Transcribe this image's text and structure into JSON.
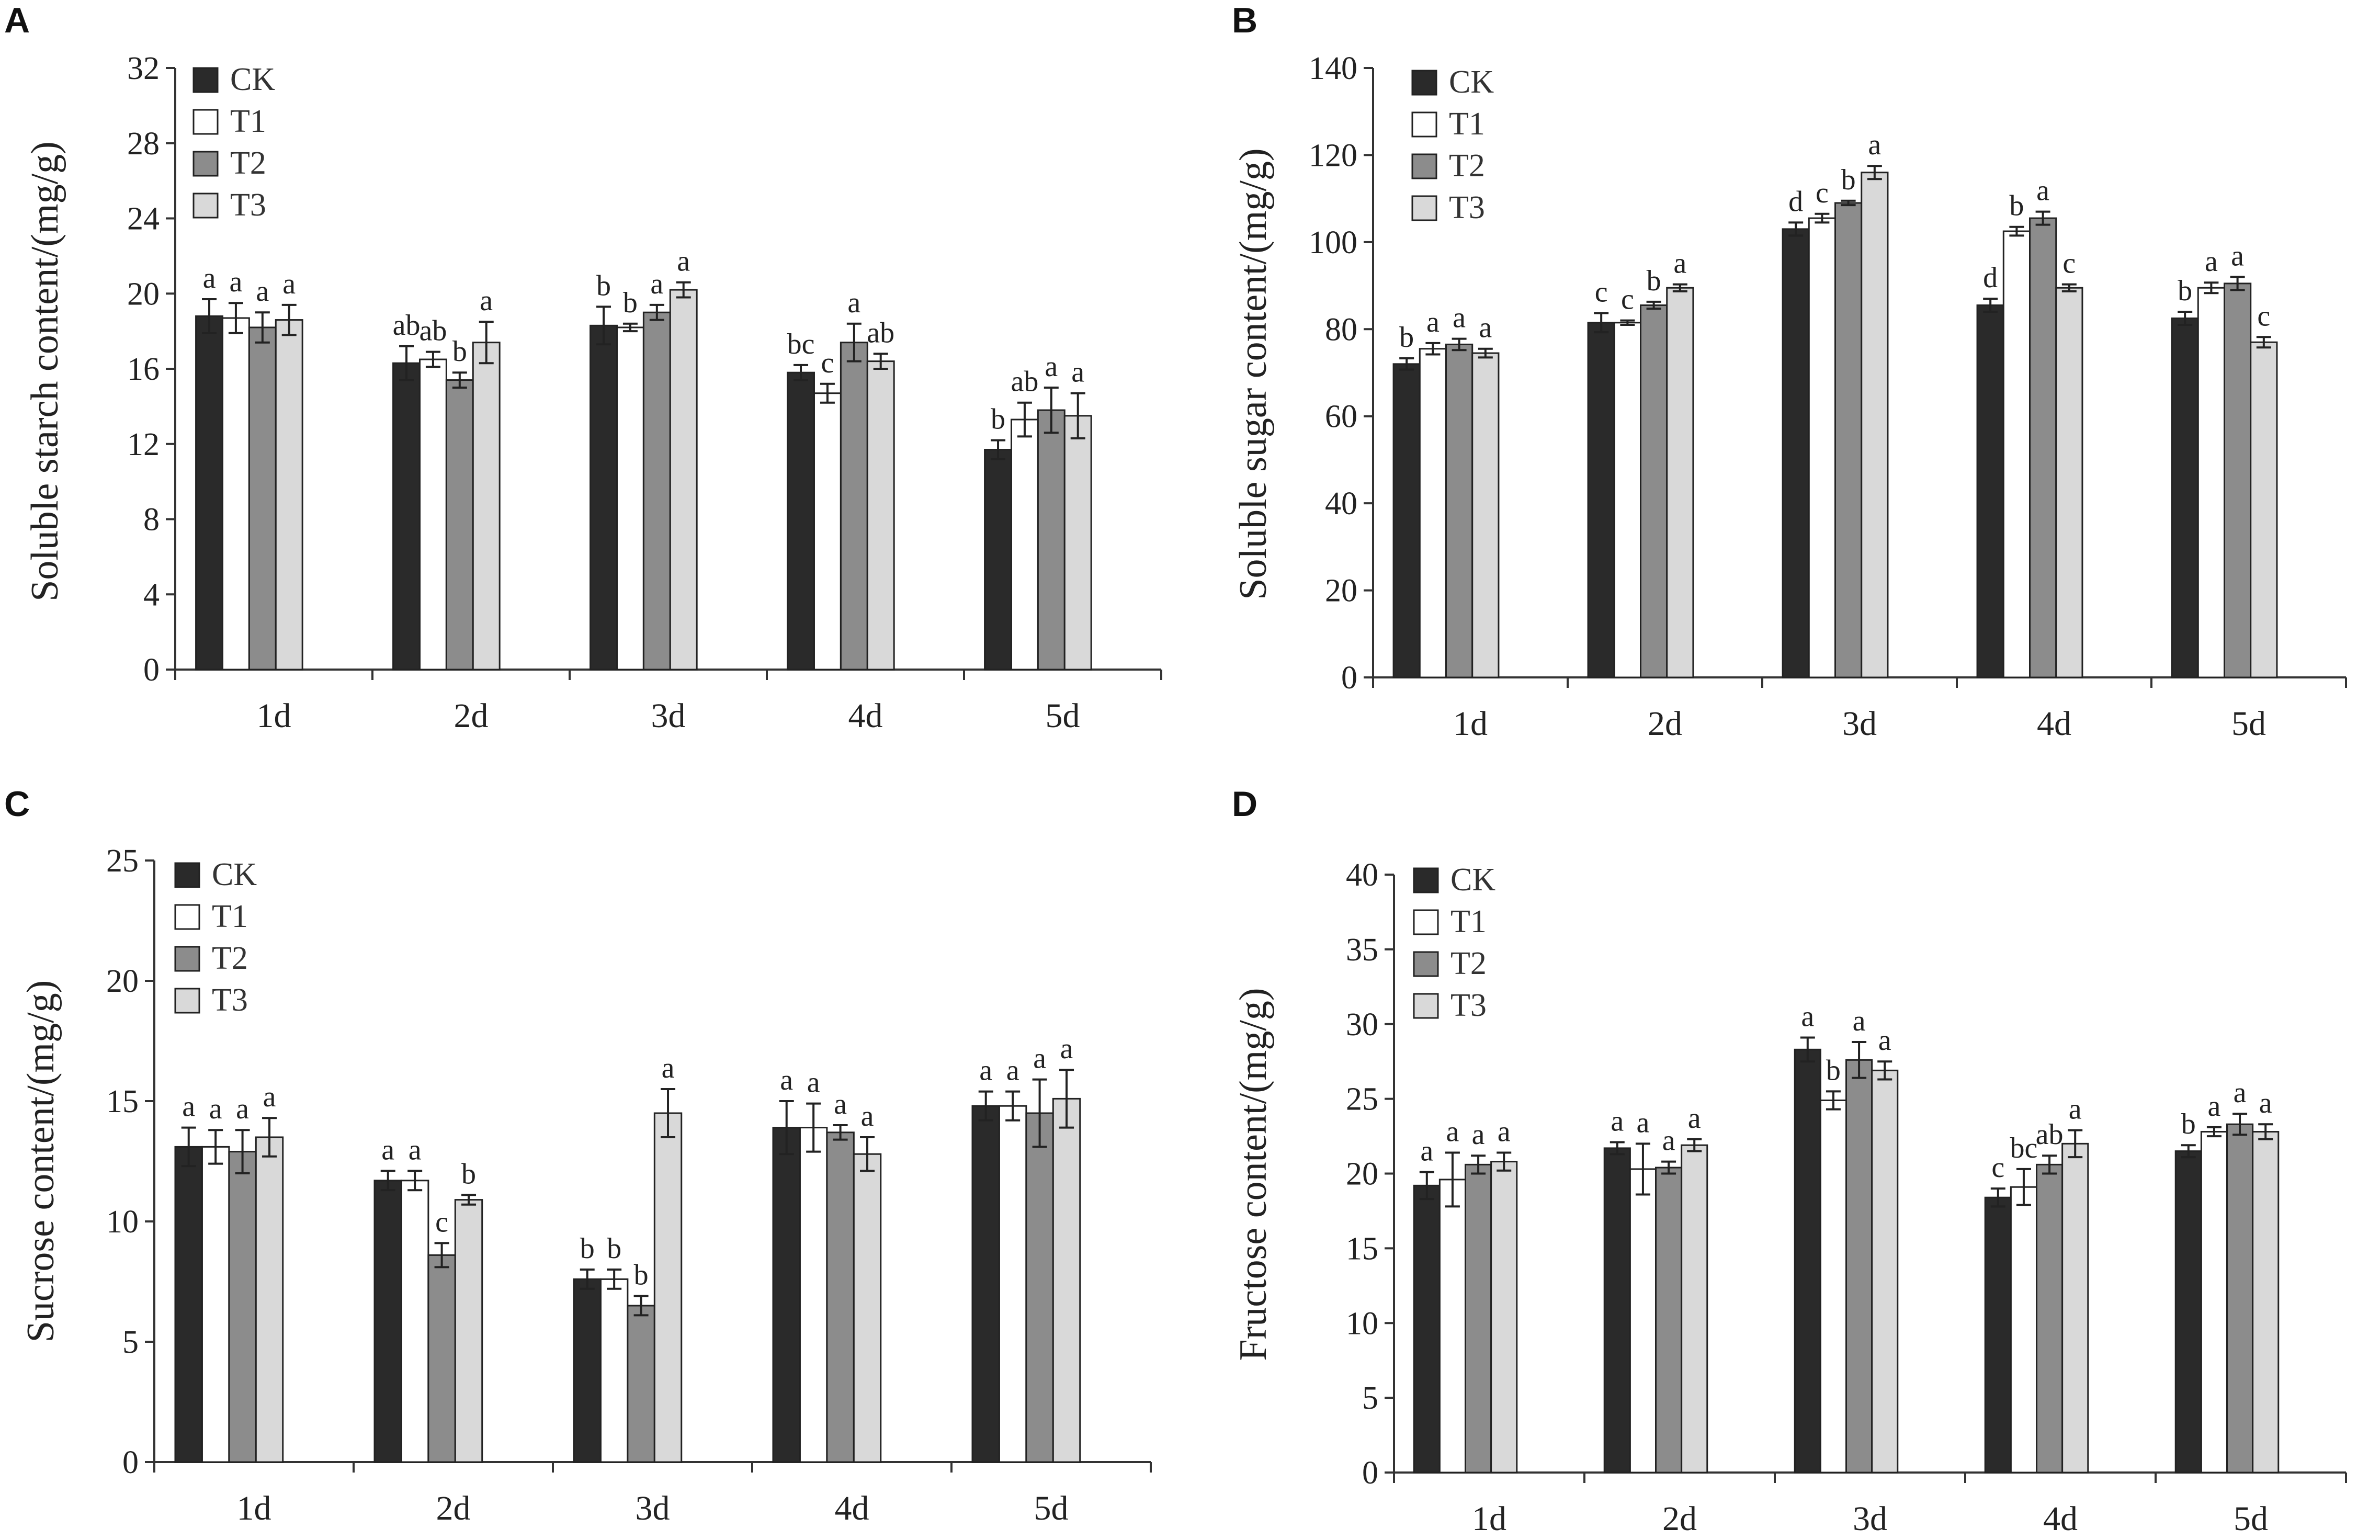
{
  "figure": {
    "colors": {
      "CK": "#2a2a2a",
      "T1": "#ffffff",
      "T2": "#8c8c8c",
      "T3": "#d9d9d9"
    }
  },
  "chart_data": [
    {
      "panel": "A",
      "type": "bar",
      "ylabel": "Soluble starch content/(mg/g)",
      "ylim": [
        0,
        32
      ],
      "yticks": [
        0,
        4,
        8,
        12,
        16,
        20,
        24,
        28,
        32
      ],
      "categories": [
        "1d",
        "2d",
        "3d",
        "4d",
        "5d"
      ],
      "legend": [
        "CK",
        "T1",
        "T2",
        "T3"
      ],
      "series": [
        {
          "name": "CK",
          "values": [
            18.8,
            16.3,
            18.3,
            15.8,
            11.7
          ],
          "errors": [
            0.9,
            0.9,
            1.0,
            0.4,
            0.5
          ],
          "labels": [
            "a",
            "ab",
            "b",
            "bc",
            "b"
          ]
        },
        {
          "name": "T1",
          "values": [
            18.7,
            16.5,
            18.2,
            14.7,
            13.3
          ],
          "errors": [
            0.8,
            0.4,
            0.2,
            0.5,
            0.9
          ],
          "labels": [
            "a",
            "ab",
            "b",
            "c",
            "ab"
          ]
        },
        {
          "name": "T2",
          "values": [
            18.2,
            15.4,
            19.0,
            17.4,
            13.8
          ],
          "errors": [
            0.8,
            0.4,
            0.4,
            1.0,
            1.2
          ],
          "labels": [
            "a",
            "b",
            "a",
            "a",
            "a"
          ]
        },
        {
          "name": "T3",
          "values": [
            18.6,
            17.4,
            20.2,
            16.4,
            13.5
          ],
          "errors": [
            0.8,
            1.1,
            0.4,
            0.4,
            1.2
          ],
          "labels": [
            "a",
            "a",
            "a",
            "ab",
            "a"
          ]
        }
      ]
    },
    {
      "panel": "B",
      "type": "bar",
      "ylabel": "Soluble sugar content/(mg/g)",
      "ylim": [
        0,
        140
      ],
      "yticks": [
        0,
        20,
        40,
        60,
        80,
        100,
        120,
        140
      ],
      "categories": [
        "1d",
        "2d",
        "3d",
        "4d",
        "5d"
      ],
      "legend": [
        "CK",
        "T1",
        "T2",
        "T3"
      ],
      "series": [
        {
          "name": "CK",
          "values": [
            72,
            81.5,
            103,
            85.5,
            82.5
          ],
          "errors": [
            1.3,
            2.2,
            1.5,
            1.5,
            1.5
          ],
          "labels": [
            "b",
            "c",
            "d",
            "d",
            "b"
          ]
        },
        {
          "name": "T1",
          "values": [
            75.5,
            81.5,
            105.5,
            102.5,
            89.5
          ],
          "errors": [
            1.3,
            0.5,
            1.0,
            1.0,
            1.2
          ],
          "labels": [
            "a",
            "c",
            "c",
            "b",
            "a"
          ]
        },
        {
          "name": "T2",
          "values": [
            76.5,
            85.5,
            109,
            105.5,
            90.5
          ],
          "errors": [
            1.3,
            0.8,
            0.5,
            1.5,
            1.5
          ],
          "labels": [
            "a",
            "b",
            "b",
            "a",
            "a"
          ]
        },
        {
          "name": "T3",
          "values": [
            74.5,
            89.5,
            116,
            89.5,
            77
          ],
          "errors": [
            1.0,
            0.8,
            1.5,
            0.8,
            1.2
          ],
          "labels": [
            "a",
            "a",
            "a",
            "c",
            "c"
          ]
        }
      ]
    },
    {
      "panel": "C",
      "type": "bar",
      "ylabel": "Sucrose content/(mg/g)",
      "ylim": [
        0,
        25
      ],
      "yticks": [
        0,
        5,
        10,
        15,
        20,
        25
      ],
      "categories": [
        "1d",
        "2d",
        "3d",
        "4d",
        "5d"
      ],
      "legend": [
        "CK",
        "T1",
        "T2",
        "T3"
      ],
      "series": [
        {
          "name": "CK",
          "values": [
            13.1,
            11.7,
            7.6,
            13.9,
            14.8
          ],
          "errors": [
            0.8,
            0.4,
            0.4,
            1.1,
            0.6
          ],
          "labels": [
            "a",
            "a",
            "b",
            "a",
            "a"
          ]
        },
        {
          "name": "T1",
          "values": [
            13.1,
            11.7,
            7.6,
            13.9,
            14.8
          ],
          "errors": [
            0.7,
            0.4,
            0.4,
            1.0,
            0.6
          ],
          "labels": [
            "a",
            "a",
            "b",
            "a",
            "a"
          ]
        },
        {
          "name": "T2",
          "values": [
            12.9,
            8.6,
            6.5,
            13.7,
            14.5
          ],
          "errors": [
            0.9,
            0.5,
            0.4,
            0.3,
            1.4
          ],
          "labels": [
            "a",
            "c",
            "b",
            "a",
            "a"
          ]
        },
        {
          "name": "T3",
          "values": [
            13.5,
            10.9,
            14.5,
            12.8,
            15.1
          ],
          "errors": [
            0.8,
            0.2,
            1.0,
            0.7,
            1.2
          ],
          "labels": [
            "a",
            "b",
            "a",
            "a",
            "a"
          ]
        }
      ]
    },
    {
      "panel": "D",
      "type": "bar",
      "ylabel": "Fructose content/(mg/g)",
      "ylim": [
        0,
        40
      ],
      "yticks": [
        0,
        5,
        10,
        15,
        20,
        25,
        30,
        35,
        40
      ],
      "categories": [
        "1d",
        "2d",
        "3d",
        "4d",
        "5d"
      ],
      "legend": [
        "CK",
        "T1",
        "T2",
        "T3"
      ],
      "series": [
        {
          "name": "CK",
          "values": [
            19.2,
            21.7,
            28.3,
            18.4,
            21.5
          ],
          "errors": [
            0.9,
            0.4,
            0.8,
            0.6,
            0.4
          ],
          "labels": [
            "a",
            "a",
            "a",
            "c",
            "b"
          ]
        },
        {
          "name": "T1",
          "values": [
            19.6,
            20.3,
            24.9,
            19.1,
            22.8
          ],
          "errors": [
            1.8,
            1.7,
            0.6,
            1.2,
            0.3
          ],
          "labels": [
            "a",
            "a",
            "b",
            "bc",
            "a"
          ]
        },
        {
          "name": "T2",
          "values": [
            20.6,
            20.4,
            27.6,
            20.6,
            23.3
          ],
          "errors": [
            0.6,
            0.4,
            1.2,
            0.6,
            0.7
          ],
          "labels": [
            "a",
            "a",
            "a",
            "ab",
            "a"
          ]
        },
        {
          "name": "T3",
          "values": [
            20.8,
            21.9,
            26.9,
            22.0,
            22.8
          ],
          "errors": [
            0.6,
            0.4,
            0.6,
            0.9,
            0.5
          ],
          "labels": [
            "a",
            "a",
            "a",
            "a",
            "a"
          ]
        }
      ]
    }
  ]
}
